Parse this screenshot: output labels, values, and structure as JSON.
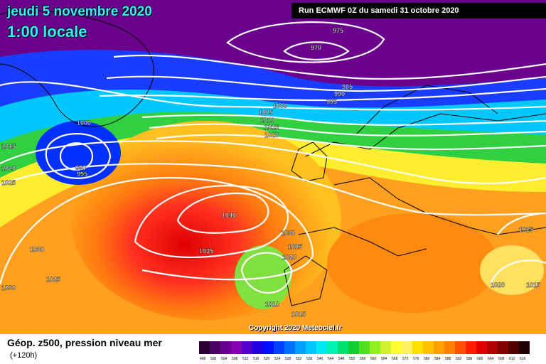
{
  "header": {
    "date": "jeudi 5 novembre 2020",
    "time": "1:00 locale",
    "run": "Run ECMWF 0Z du samedi 31 octobre 2020"
  },
  "copyright": "Copyright 2020 Meteociel.fr",
  "footer": {
    "title": "Géop. z500, pression niveau mer",
    "subtitle": "(+120h)"
  },
  "isobar_labels": [
    "975",
    "970",
    "985",
    "990",
    "995",
    "1000",
    "1005",
    "1010",
    "1015",
    "1020",
    "1000",
    "990",
    "995",
    "1015",
    "1020",
    "1025",
    "1040",
    "1035",
    "1030",
    "1030",
    "1025",
    "1020",
    "1030",
    "1025",
    "1010",
    "1015",
    "1025",
    "1020",
    "1015"
  ],
  "legend": {
    "values": [
      "496",
      "500",
      "504",
      "508",
      "512",
      "516",
      "520",
      "524",
      "528",
      "532",
      "536",
      "540",
      "544",
      "548",
      "552",
      "556",
      "560",
      "564",
      "568",
      "572",
      "576",
      "580",
      "584",
      "588",
      "592",
      "596",
      "600",
      "604",
      "608",
      "612",
      "616"
    ],
    "colors": [
      "#2a0030",
      "#4a0060",
      "#6a0090",
      "#8400b0",
      "#5000c8",
      "#2000e0",
      "#0010ff",
      "#0040ff",
      "#0070ff",
      "#00a0ff",
      "#00c8ff",
      "#00e8f0",
      "#00f0b0",
      "#00e070",
      "#10d030",
      "#50e020",
      "#90f020",
      "#d0f030",
      "#ffff30",
      "#fff060",
      "#ffe000",
      "#ffc000",
      "#ffa000",
      "#ff8000",
      "#ff5000",
      "#ff2000",
      "#e00000",
      "#b00000",
      "#800000",
      "#500000",
      "#200000"
    ]
  }
}
